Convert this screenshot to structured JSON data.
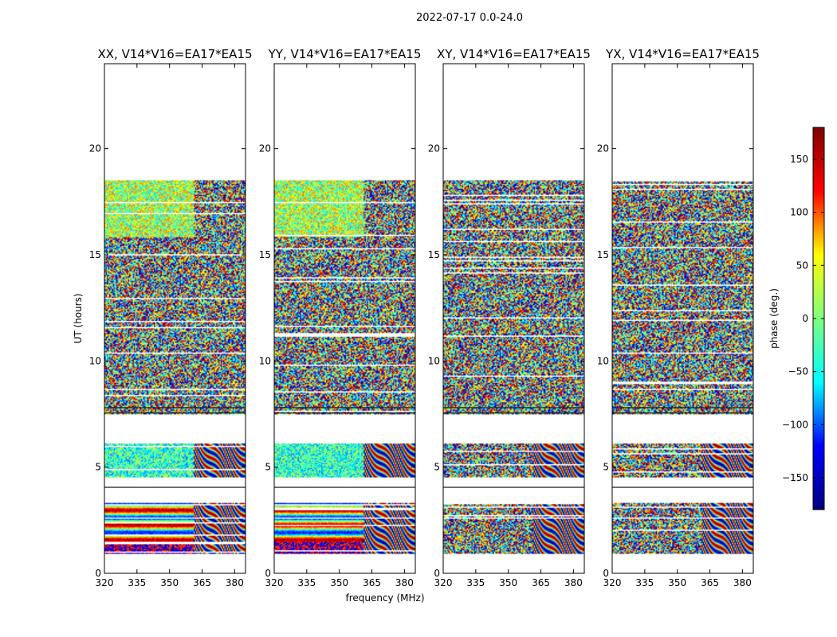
{
  "chart_data": {
    "type": "heatmap",
    "suptitle": "2022-07-17 0.0-24.0",
    "xlabel": "frequency (MHz)",
    "ylabel": "UT (hours)",
    "xlim": [
      320,
      385
    ],
    "ylim": [
      0,
      24
    ],
    "xticks": [
      "320",
      "335",
      "350",
      "365",
      "380"
    ],
    "yticks": [
      "0",
      "5",
      "10",
      "15",
      "20"
    ],
    "colorbar": {
      "label": "phase (deg.)",
      "range": [
        -180,
        180
      ],
      "ticks": [
        "150",
        "100",
        "50",
        "0",
        "−50",
        "−100",
        "−150"
      ],
      "colormap": "jet",
      "stops": [
        "#00007f",
        "#0000ff",
        "#00ffff",
        "#7fff7f",
        "#ffff00",
        "#ff0000",
        "#7f0000"
      ]
    },
    "panels": [
      {
        "title": "XX, V14*V16=EA17*EA15",
        "pattern": "coherent"
      },
      {
        "title": "YY, V14*V16=EA17*EA15",
        "pattern": "coherent"
      },
      {
        "title": "XY, V14*V16=EA17*EA15",
        "pattern": "noise"
      },
      {
        "title": "YX, V14*V16=EA17*EA15",
        "pattern": "noise"
      }
    ],
    "data_blocks_ut": [
      [
        0.9,
        3.3
      ],
      [
        4.5,
        6.1
      ],
      [
        7.5,
        18.5
      ]
    ],
    "gap_lines_ut": [
      4.05,
      7.55,
      7.8
    ],
    "band_edge_mhz": 361
  }
}
